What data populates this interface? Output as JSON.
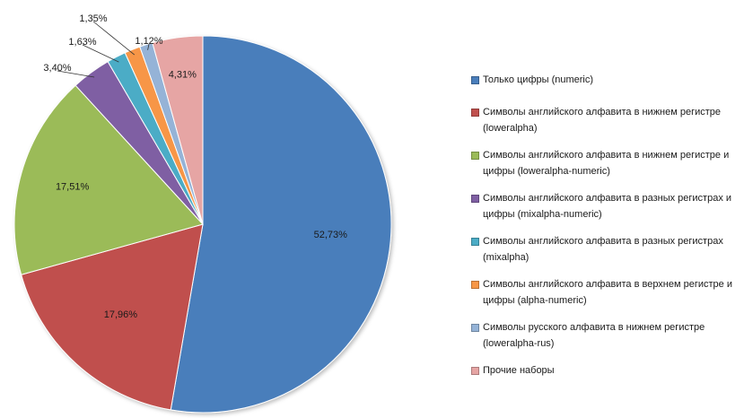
{
  "chart_data": {
    "type": "pie",
    "start_angle_deg": 0,
    "direction": "clockwise",
    "slices": [
      {
        "label": "Только цифры (numeric)",
        "value": 52.73,
        "display": "52,73%",
        "color": "#4a7ebb"
      },
      {
        "label": "Символы английского алфавита  в нижнем регистре (loweralpha)",
        "value": 17.96,
        "display": "17,96%",
        "color": "#c0504d"
      },
      {
        "label": "Символы английского алфавита  в нижнем регистре и цифры  (loweralpha-numeric)",
        "value": 17.51,
        "display": "17,51%",
        "color": "#9bbb59"
      },
      {
        "label": "Символы английского алфавита  в разных регистрах и цифры  (mixalpha-numeric)",
        "value": 3.4,
        "display": "3,40%",
        "color": "#7f5fa3"
      },
      {
        "label": "Символы английского алфавита  в разных регистрах (mixalpha)",
        "value": 1.63,
        "display": "1,63%",
        "color": "#4bacc6"
      },
      {
        "label": "Символы английского алфавита  в верхнем регистре и цифры  (alpha-numeric)",
        "value": 1.35,
        "display": "1,35%",
        "color": "#f79646"
      },
      {
        "label": "Символы русского алфавита  в нижнем регистре (loweralpha-rus)",
        "value": 1.12,
        "display": "1,12%",
        "color": "#95b3d7"
      },
      {
        "label": "Прочие наборы",
        "value": 4.31,
        "display": "4,31%",
        "color": "#e6a5a4"
      }
    ],
    "legend_placement": "right"
  }
}
